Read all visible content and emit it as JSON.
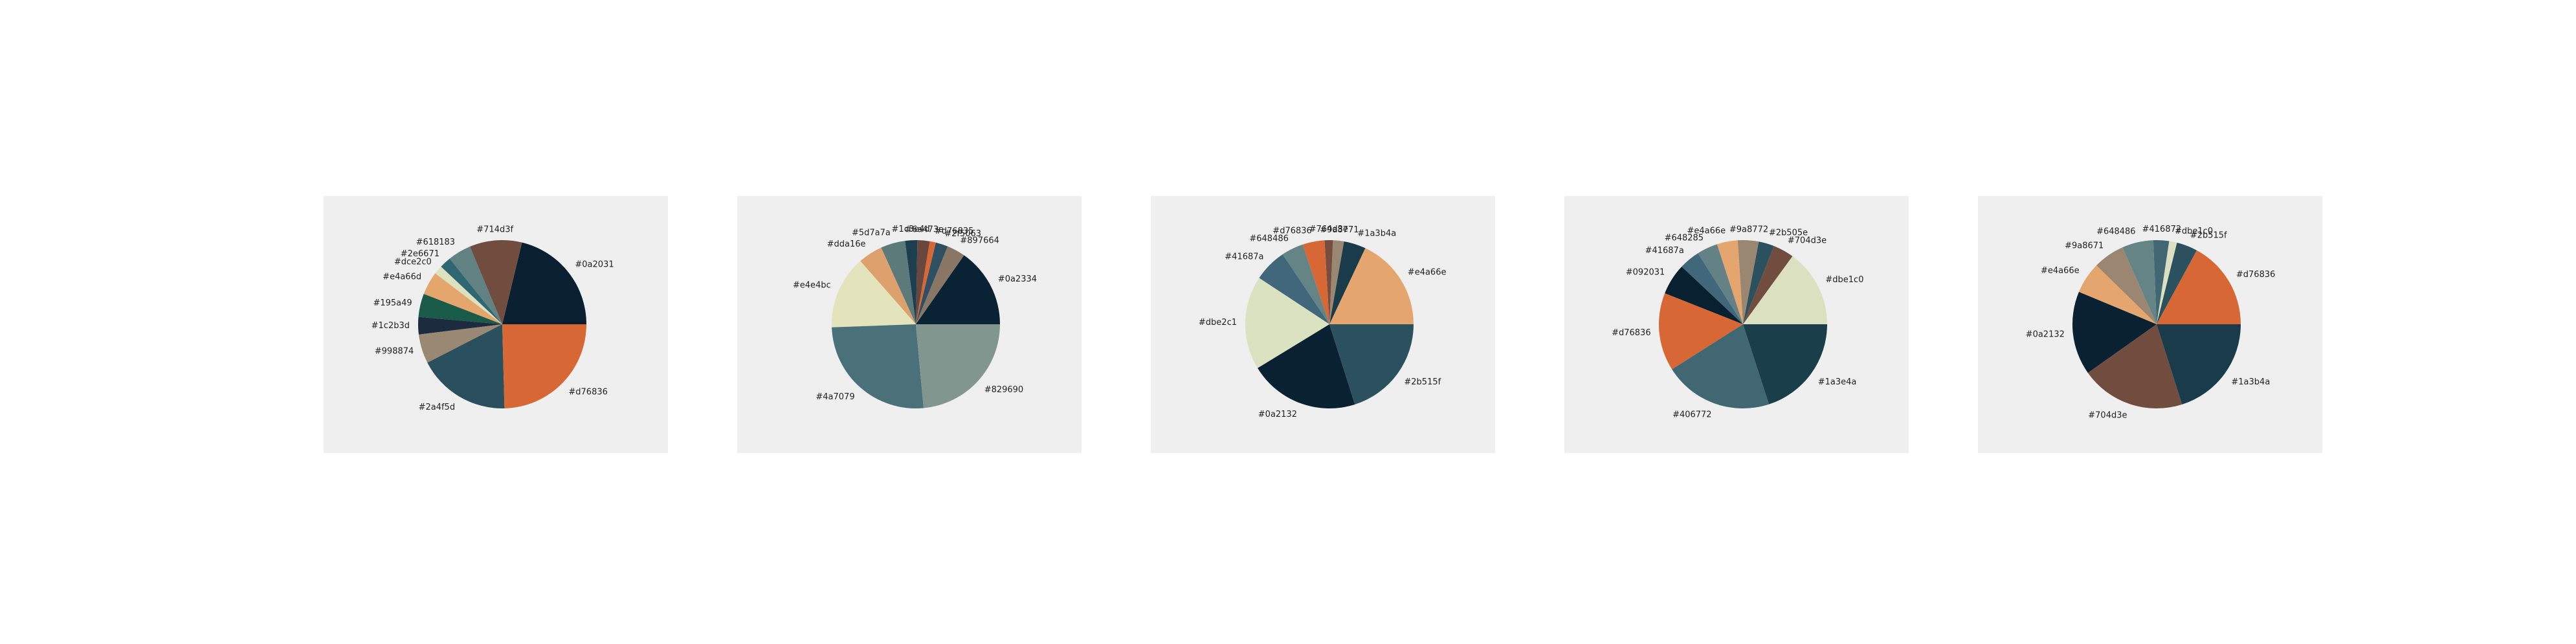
{
  "chart_data": [
    {
      "type": "pie",
      "slices": [
        {
          "label": "#0a2031",
          "value": 19,
          "color": "#0a2031"
        },
        {
          "label": "#714d3f",
          "value": 9,
          "color": "#714d3f"
        },
        {
          "label": "#618183",
          "value": 4,
          "color": "#618183"
        },
        {
          "label": "#2e6671",
          "value": 2,
          "color": "#2e6671"
        },
        {
          "label": "#dce2c0",
          "value": 1.5,
          "color": "#dce2c0"
        },
        {
          "label": "#e4a66d",
          "value": 4,
          "color": "#e4a66d"
        },
        {
          "label": "#195a49",
          "value": 4,
          "color": "#195a49"
        },
        {
          "label": "#1c2b3d",
          "value": 3,
          "color": "#1c2b3d"
        },
        {
          "label": "#998874",
          "value": 5,
          "color": "#998874"
        },
        {
          "label": "#2a4f5d",
          "value": 16,
          "color": "#2a4f5d"
        },
        {
          "label": "#d76836",
          "value": 22,
          "color": "#d76836"
        }
      ]
    },
    {
      "type": "pie",
      "slices": [
        {
          "label": "#0a2334",
          "value": 13,
          "color": "#0a2334"
        },
        {
          "label": "#897664",
          "value": 3,
          "color": "#897664"
        },
        {
          "label": "#2f5063",
          "value": 2,
          "color": "#2f5063"
        },
        {
          "label": "#d76835",
          "value": 1,
          "color": "#d76835"
        },
        {
          "label": "#6a473e",
          "value": 2,
          "color": "#6a473e"
        },
        {
          "label": "#1c3e4d",
          "value": 2,
          "color": "#1c3e4d"
        },
        {
          "label": "#5d7a7a",
          "value": 4,
          "color": "#5d7a7a"
        },
        {
          "label": "#dda16e",
          "value": 4,
          "color": "#dda16e"
        },
        {
          "label": "#e4e4bc",
          "value": 12,
          "color": "#e4e4bc"
        },
        {
          "label": "#4a7079",
          "value": 22,
          "color": "#4a7079"
        },
        {
          "label": "#829690",
          "value": 20,
          "color": "#829690"
        }
      ]
    },
    {
      "type": "pie",
      "slices": [
        {
          "label": "#e4a66e",
          "value": 17,
          "color": "#e4a66e"
        },
        {
          "label": "#1a3b4a",
          "value": 4,
          "color": "#1a3b4a"
        },
        {
          "label": "#9a8771",
          "value": 2,
          "color": "#9a8771"
        },
        {
          "label": "#764d3e",
          "value": 1.5,
          "color": "#764d3e"
        },
        {
          "label": "#d76836",
          "value": 4,
          "color": "#d76836"
        },
        {
          "label": "#648486",
          "value": 4,
          "color": "#648486"
        },
        {
          "label": "#41687a",
          "value": 6,
          "color": "#41687a"
        },
        {
          "label": "#dbe2c1",
          "value": 17,
          "color": "#dbe2c1"
        },
        {
          "label": "#0a2132",
          "value": 20,
          "color": "#0a2132"
        },
        {
          "label": "#2b515f",
          "value": 19,
          "color": "#2b515f"
        }
      ]
    },
    {
      "type": "pie",
      "slices": [
        {
          "label": "#dbe1c0",
          "value": 15,
          "color": "#dbe1c0"
        },
        {
          "label": "#704d3e",
          "value": 4,
          "color": "#704d3e"
        },
        {
          "label": "#2b505e",
          "value": 3,
          "color": "#2b505e"
        },
        {
          "label": "#9a8772",
          "value": 4,
          "color": "#9a8772"
        },
        {
          "label": "#e4a66e",
          "value": 4,
          "color": "#e4a66e"
        },
        {
          "label": "#648285",
          "value": 4,
          "color": "#648285"
        },
        {
          "label": "#41687a",
          "value": 4,
          "color": "#41687a"
        },
        {
          "label": "#092031",
          "value": 6,
          "color": "#092031"
        },
        {
          "label": "#d76836",
          "value": 15,
          "color": "#d76836"
        },
        {
          "label": "#406772",
          "value": 21,
          "color": "#406772"
        },
        {
          "label": "#1a3e4a",
          "value": 20,
          "color": "#1a3e4a"
        }
      ]
    },
    {
      "type": "pie",
      "slices": [
        {
          "label": "#d76836",
          "value": 17,
          "color": "#d76836"
        },
        {
          "label": "#2b515f",
          "value": 4,
          "color": "#2b515f"
        },
        {
          "label": "#dbe1c0",
          "value": 1.5,
          "color": "#dbe1c0"
        },
        {
          "label": "#416872",
          "value": 3,
          "color": "#416872"
        },
        {
          "label": "#648486",
          "value": 6,
          "color": "#648486"
        },
        {
          "label": "#9a8671",
          "value": 6,
          "color": "#9a8671"
        },
        {
          "label": "#e4a66e",
          "value": 6,
          "color": "#e4a66e"
        },
        {
          "label": "#0a2132",
          "value": 16,
          "color": "#0a2132"
        },
        {
          "label": "#704d3e",
          "value": 20,
          "color": "#704d3e"
        },
        {
          "label": "#1a3b4a",
          "value": 20,
          "color": "#1a3b4a"
        }
      ]
    }
  ]
}
